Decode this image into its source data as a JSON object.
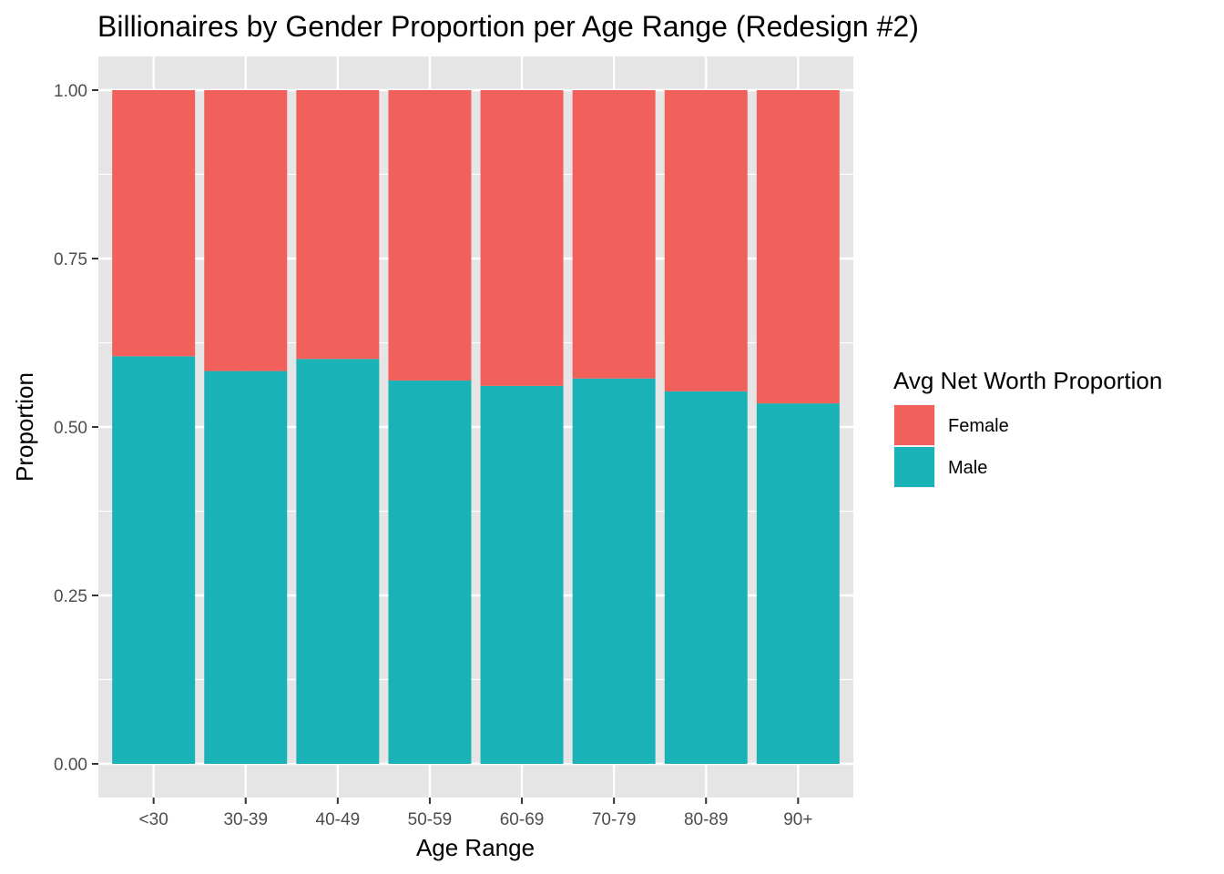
{
  "chart_data": {
    "type": "bar",
    "stacked": true,
    "title": "Billionaires by Gender Proportion per Age Range (Redesign #2)",
    "xlabel": "Age Range",
    "ylabel": "Proportion",
    "categories": [
      "<30",
      "30-39",
      "40-49",
      "50-59",
      "60-69",
      "70-79",
      "80-89",
      "90+"
    ],
    "series": [
      {
        "name": "Male",
        "color": "#19B3B7",
        "values": [
          0.605,
          0.583,
          0.601,
          0.569,
          0.561,
          0.572,
          0.553,
          0.535
        ]
      },
      {
        "name": "Female",
        "color": "#F2605C",
        "values": [
          0.395,
          0.417,
          0.399,
          0.431,
          0.439,
          0.428,
          0.447,
          0.465
        ]
      }
    ],
    "ylim": [
      -0.05,
      1.05
    ],
    "yticks": [
      0.0,
      0.25,
      0.5,
      0.75,
      1.0
    ],
    "ytick_labels": [
      "0.00",
      "0.25",
      "0.50",
      "0.75",
      "1.00"
    ],
    "grid": true,
    "legend": {
      "title": "Avg Net Worth Proportion",
      "placement": "right",
      "entries": [
        {
          "label": "Female",
          "color": "#F2605C"
        },
        {
          "label": "Male",
          "color": "#19B3B7"
        }
      ]
    },
    "panel_background": "#E5E5E5",
    "grid_color": "#FFFFFF"
  }
}
